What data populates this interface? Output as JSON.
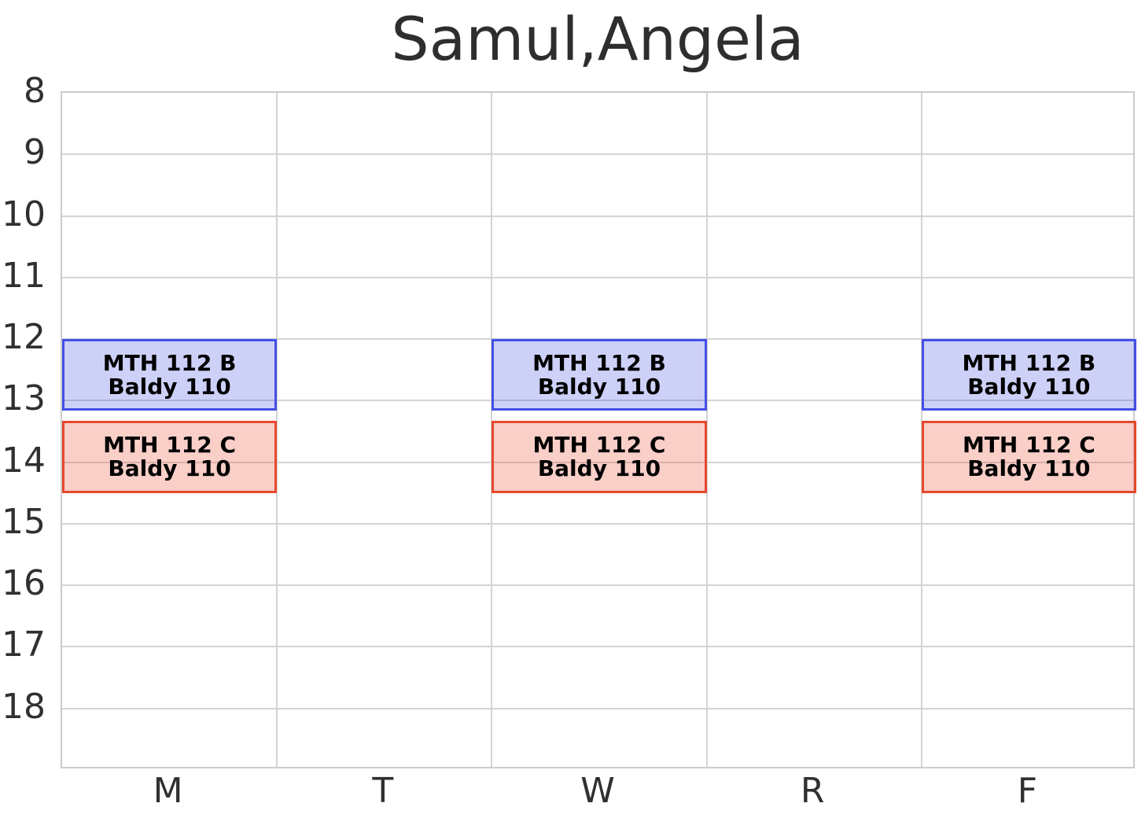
{
  "page": {
    "background": "#ffffff"
  },
  "chart_data": {
    "type": "schedule",
    "title": "Samul,Angela",
    "x_categories": [
      "M",
      "T",
      "W",
      "R",
      "F"
    ],
    "y_ticks": [
      8,
      9,
      10,
      11,
      12,
      13,
      14,
      15,
      16,
      17,
      18
    ],
    "y_range": [
      8,
      19
    ],
    "y_unit": "hour_of_day",
    "y_direction": "down",
    "grid": true,
    "legend": false,
    "events": [
      {
        "title": "MTH 112 B",
        "location": "Baldy 110",
        "days": [
          "M",
          "W",
          "F"
        ],
        "start_hour": 12.0,
        "end_hour": 13.1667,
        "fill_color": "rgba(47,61,226,0.24)",
        "border_color": "#4450e6"
      },
      {
        "title": "MTH 112 C",
        "location": "Baldy 110",
        "days": [
          "M",
          "W",
          "F"
        ],
        "start_hour": 13.3333,
        "end_hour": 14.5,
        "fill_color": "rgba(232,70,44,0.26)",
        "border_color": "#e6482d"
      }
    ],
    "colors": {
      "grid": "#d4d4d4",
      "axis_text": "#303030",
      "title_text": "#2e2e2e",
      "event_text": "#000000"
    }
  }
}
